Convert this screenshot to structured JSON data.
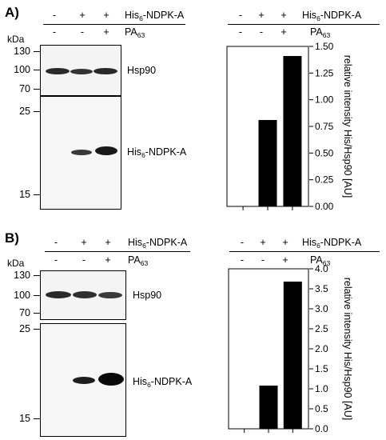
{
  "panels": [
    {
      "label": "A)",
      "header": {
        "his_label": "His",
        "his_sub": "6",
        "his_rest": "-NDPK-A",
        "pa_label": "PA",
        "pa_sub": "63",
        "lane_his": [
          "-",
          "+",
          "+"
        ],
        "lane_pa": [
          "-",
          "-",
          "+"
        ]
      },
      "blot": {
        "unit": "kDa",
        "upper_markers": [
          "130",
          "100",
          "70"
        ],
        "lower_markers": [
          "25",
          "15"
        ],
        "band_upper": "Hsp90",
        "band_lower_main": "His",
        "band_lower_sub": "6",
        "band_lower_rest": "-NDPK-A"
      }
    },
    {
      "label": "B)",
      "header": {
        "his_label": "His",
        "his_sub": "6",
        "his_rest": "-NDPK-A",
        "pa_label": "PA",
        "pa_sub": "63",
        "lane_his": [
          "-",
          "+",
          "+"
        ],
        "lane_pa": [
          "-",
          "-",
          "+"
        ]
      },
      "blot": {
        "unit": "kDa",
        "upper_markers": [
          "130",
          "100",
          "70"
        ],
        "lower_markers": [
          "25",
          "15"
        ],
        "band_upper": "Hsp90",
        "band_lower_main": "His",
        "band_lower_sub": "6",
        "band_lower_rest": "-NDPK-A"
      }
    }
  ],
  "chart_data": [
    {
      "type": "bar",
      "categories": [
        "-/-",
        "+/-",
        "+/+"
      ],
      "values": [
        0.0,
        0.81,
        1.41
      ],
      "ylabel": "relative intensity His/Hsp90 [AU]",
      "ylim": [
        0,
        1.5
      ],
      "yticks": [
        "0.00",
        "0.25",
        "0.50",
        "0.75",
        "1.00",
        "1.25",
        "1.50"
      ],
      "grid": false
    },
    {
      "type": "bar",
      "categories": [
        "-/-",
        "+/-",
        "+/+"
      ],
      "values": [
        0.0,
        1.08,
        3.68
      ],
      "ylabel": "relative intensity His/Hsp90 [AU]",
      "ylim": [
        0,
        4.0
      ],
      "yticks": [
        "0.0",
        "0.5",
        "1.0",
        "1.5",
        "2.0",
        "2.5",
        "3.0",
        "3.5",
        "4.0"
      ],
      "grid": false
    }
  ]
}
